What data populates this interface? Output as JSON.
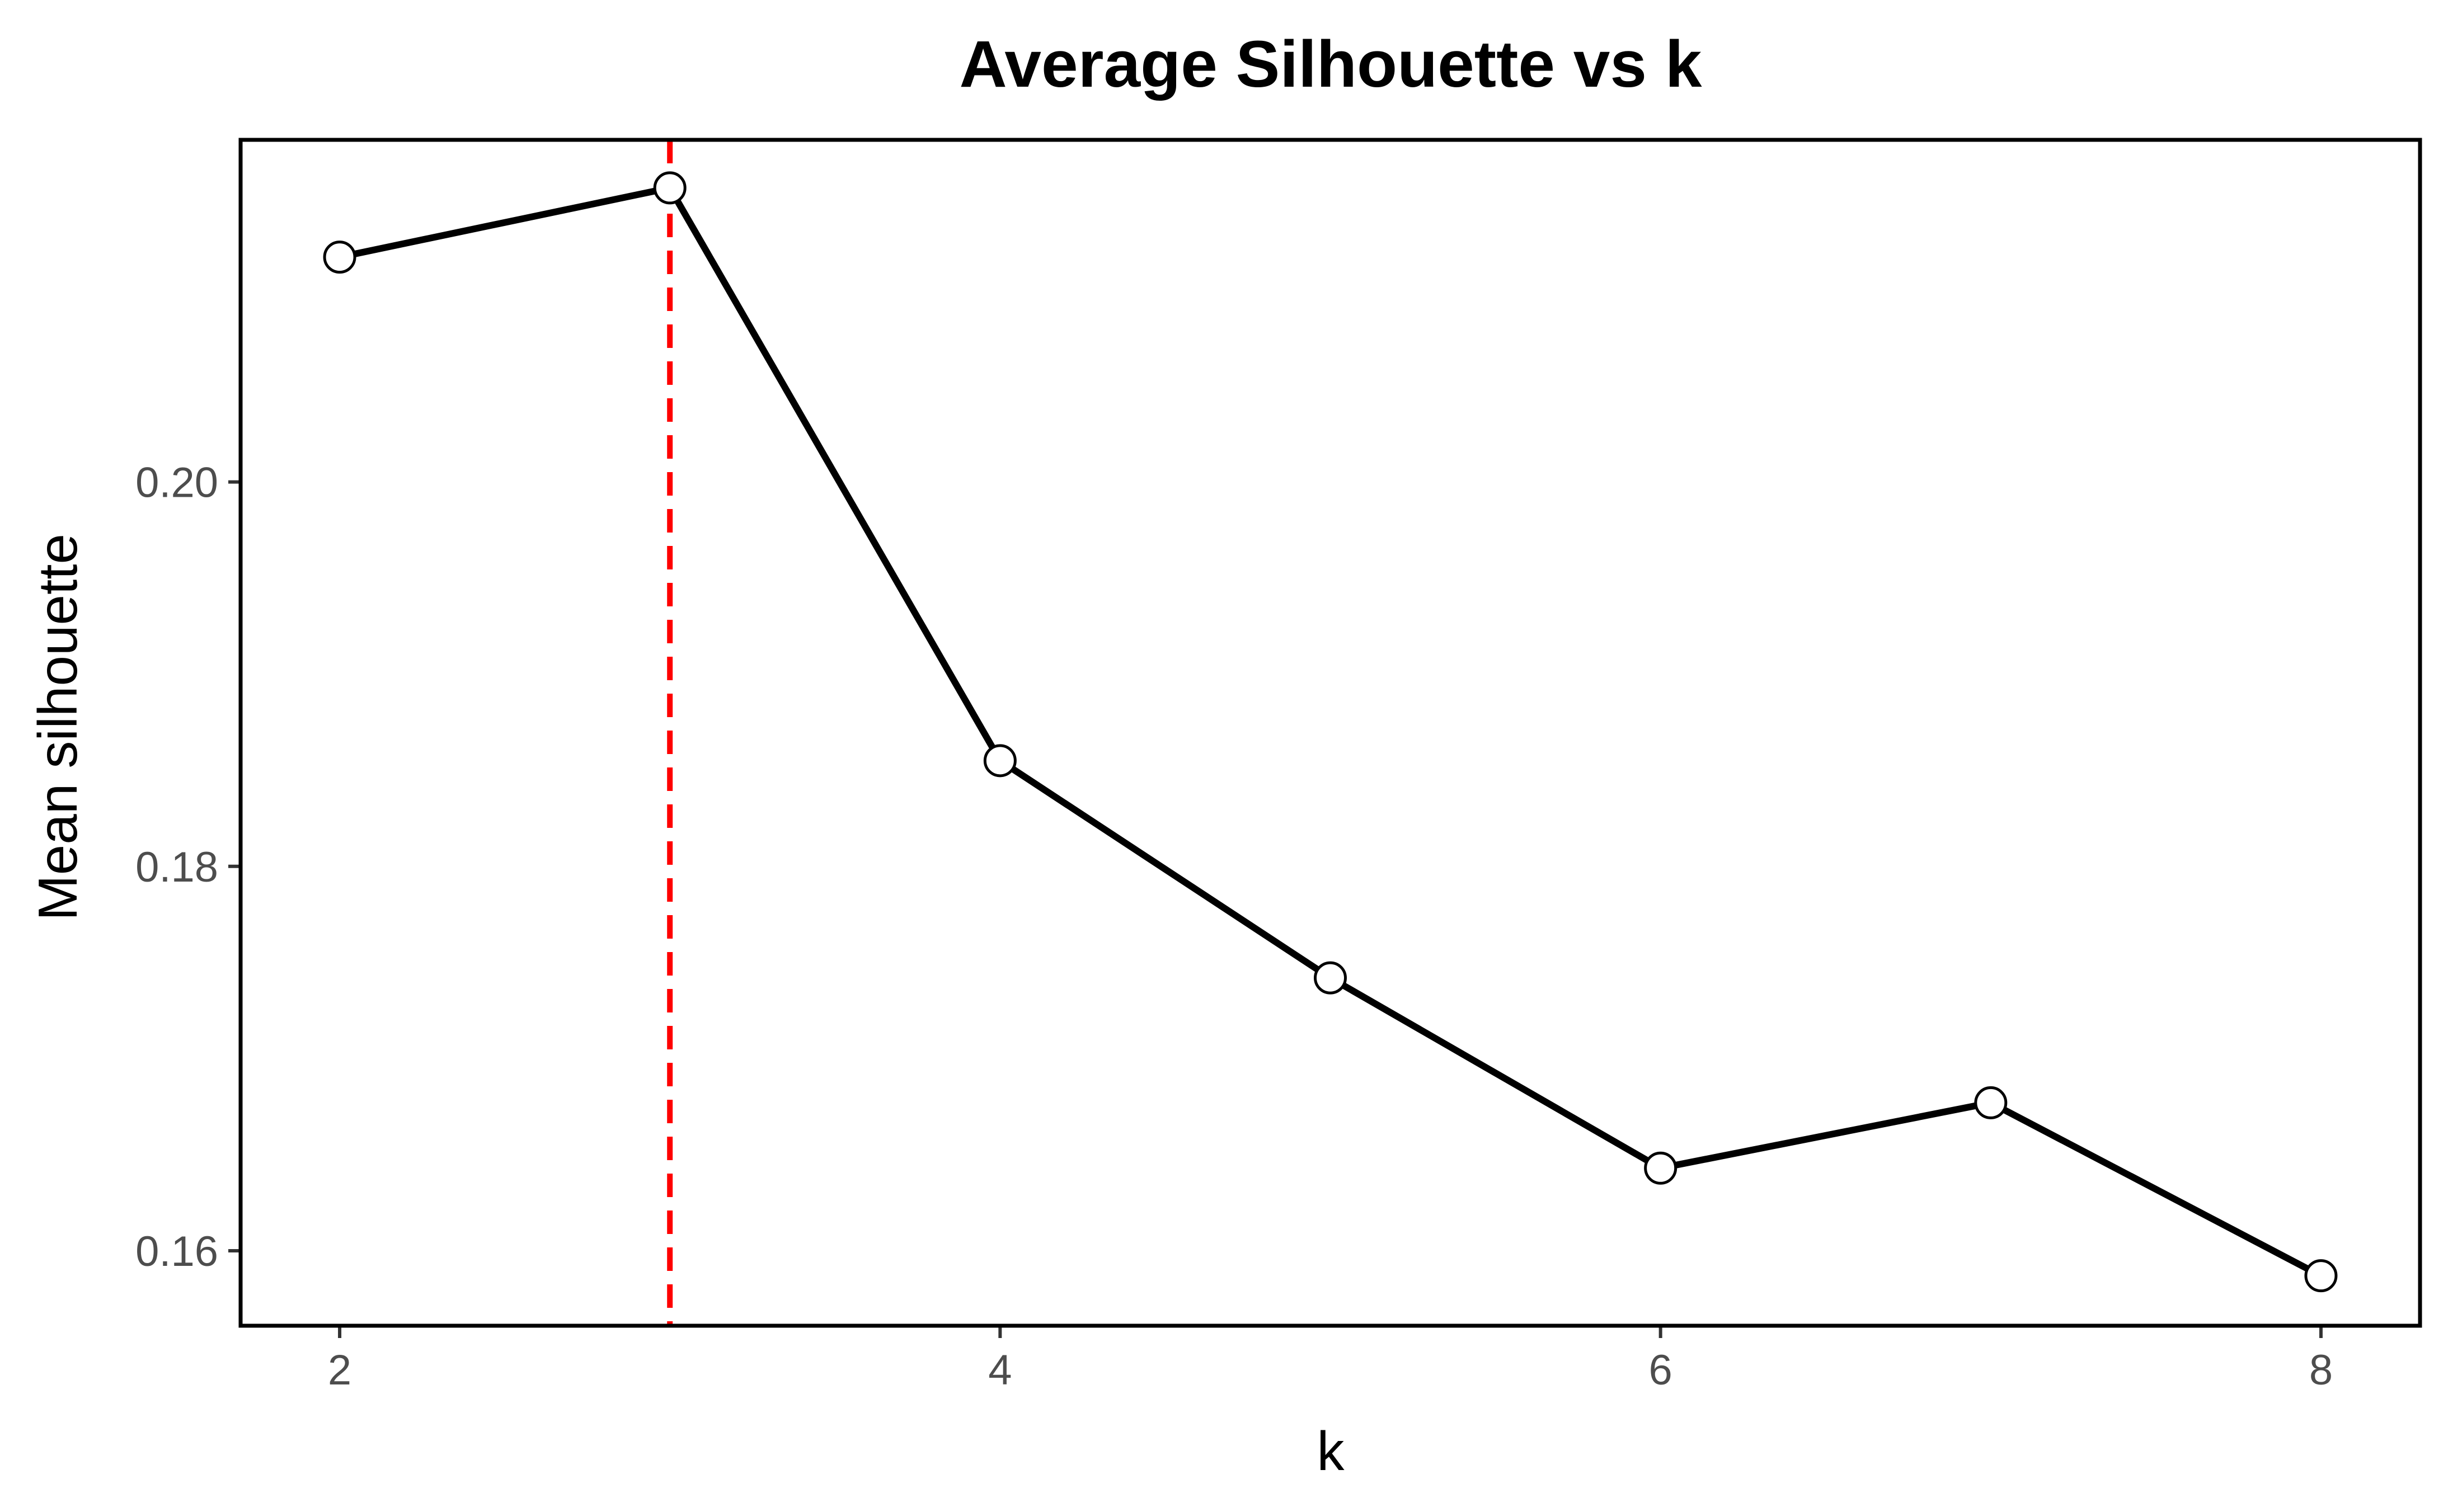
{
  "chart_data": {
    "type": "line",
    "title": "Average Silhouette vs k",
    "xlabel": "k",
    "ylabel": "Mean silhouette",
    "x": [
      2,
      3,
      4,
      5,
      6,
      7,
      8
    ],
    "series": [
      {
        "values": [
          0.2117,
          0.2153,
          0.1855,
          0.1742,
          0.1643,
          0.1677,
          0.1587
        ]
      }
    ],
    "xlim": [
      1.7,
      8.3
    ],
    "ylim": [
      0.1561,
      0.2178
    ],
    "xticks": [
      2,
      4,
      6,
      8
    ],
    "xtick_labels": [
      "2",
      "4",
      "6",
      "8"
    ],
    "yticks": [
      0.16,
      0.18,
      0.2
    ],
    "ytick_labels": [
      "0.16",
      "0.18",
      "0.20"
    ],
    "reference_line": {
      "orientation": "vertical",
      "x": 3,
      "style": "dashed",
      "color": "#ff0000"
    },
    "line_color": "#000000",
    "marker_fill": "#ffffff",
    "grid": false,
    "legend": "none"
  }
}
